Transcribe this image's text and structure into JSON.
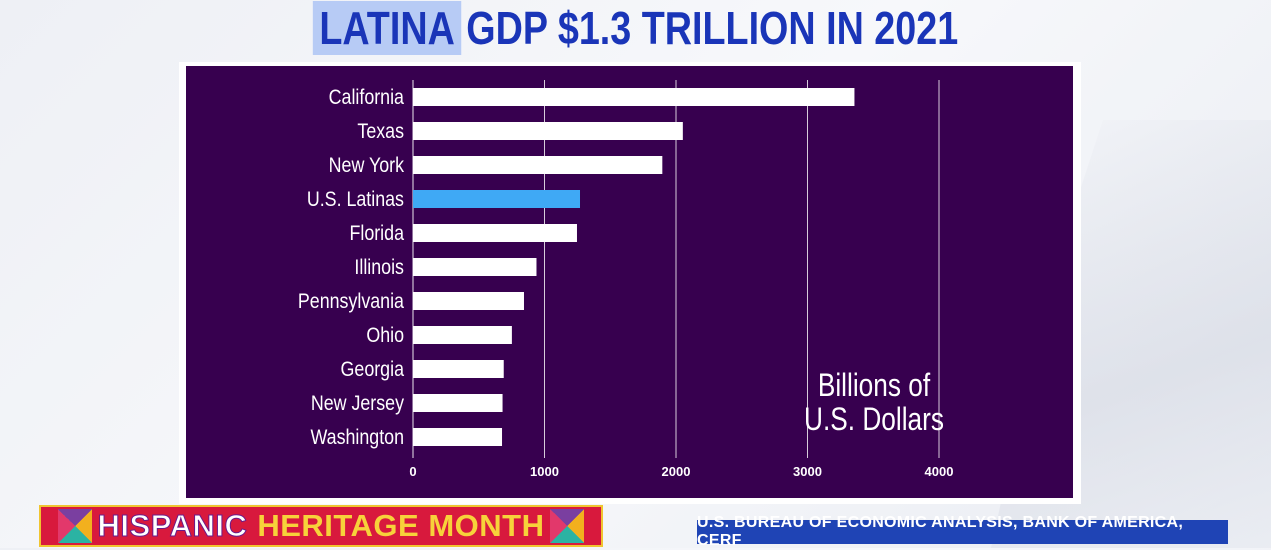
{
  "page": {
    "title_highlight": "LATINA",
    "title_rest": "GDP $1.3 TRILLION IN 2021",
    "banner_word1": "HISPANIC",
    "banner_word2": "HERITAGE MONTH",
    "source": "U.S. BUREAU OF ECONOMIC ANALYSIS, BANK OF AMERICA, CERF"
  },
  "colors": {
    "chart_background": "#37004f",
    "bar": "#ffffff",
    "highlight_bar": "#3fa9f5",
    "title": "#1a35b8",
    "banner": "#d8193d",
    "source_box": "#1f44b5"
  },
  "chart_data": {
    "type": "bar",
    "orientation": "horizontal",
    "categories": [
      "California",
      "Texas",
      "New York",
      "U.S. Latinas",
      "Florida",
      "Illinois",
      "Pennsylvania",
      "Ohio",
      "Georgia",
      "New Jersey",
      "Washington"
    ],
    "values": [
      3357,
      2052,
      1896,
      1270,
      1247,
      939,
      844,
      752,
      690,
      681,
      677
    ],
    "highlight_category": "U.S. Latinas",
    "units_label_line1": "Billions of",
    "units_label_line2": "U.S. Dollars",
    "xlim": [
      0,
      4000
    ],
    "x_ticks": [
      0,
      1000,
      2000,
      3000,
      4000
    ],
    "grid": true
  }
}
